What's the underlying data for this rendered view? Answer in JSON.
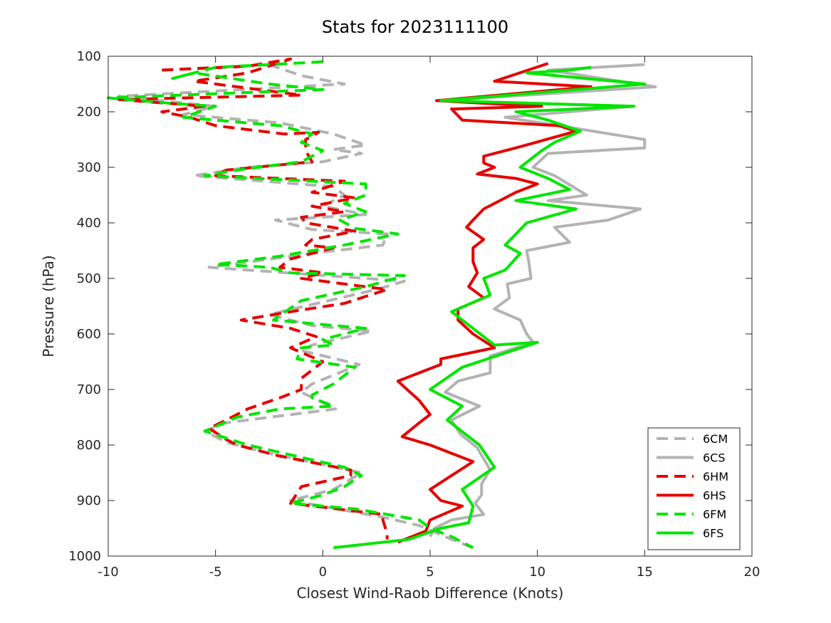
{
  "chart_data": {
    "type": "line",
    "title": "Stats for 2023111100",
    "xlabel": "Closest Wind-Raob Difference (Knots)",
    "ylabel": "Pressure (hPa)",
    "xlim": [
      -10,
      20
    ],
    "ylim": [
      100,
      1000
    ],
    "y_reversed": true,
    "grid": false,
    "legend_position": "bottom-right",
    "x_ticks": [
      -10,
      -5,
      0,
      5,
      10,
      15,
      20
    ],
    "y_ticks": [
      100,
      200,
      300,
      400,
      500,
      600,
      700,
      800,
      900,
      1000
    ],
    "series": [
      {
        "name": "6CM",
        "color": "#b3b3b3",
        "dash": true,
        "points": [
          [
            -7.5,
            125
          ],
          [
            -2.5,
            115
          ],
          [
            -1,
            135
          ],
          [
            1,
            150
          ],
          [
            -9.5,
            172
          ],
          [
            -5,
            190
          ],
          [
            -6.5,
            205
          ],
          [
            -2,
            220
          ],
          [
            0.5,
            240
          ],
          [
            2,
            260
          ],
          [
            0.5,
            268
          ],
          [
            1.8,
            275
          ],
          [
            0,
            290
          ],
          [
            -3.5,
            300
          ],
          [
            -6,
            315
          ],
          [
            0.5,
            335
          ],
          [
            1,
            350
          ],
          [
            0,
            370
          ],
          [
            2,
            385
          ],
          [
            -2.2,
            395
          ],
          [
            -0.5,
            412
          ],
          [
            3,
            420
          ],
          [
            2.8,
            440
          ],
          [
            -0.5,
            455
          ],
          [
            -5.3,
            480
          ],
          [
            3.8,
            505
          ],
          [
            2.5,
            520
          ],
          [
            -2.5,
            565
          ],
          [
            -0.5,
            585
          ],
          [
            2.3,
            595
          ],
          [
            -0.5,
            620
          ],
          [
            -1,
            630
          ],
          [
            1.7,
            655
          ],
          [
            -0.5,
            690
          ],
          [
            -1,
            705
          ],
          [
            0.6,
            735
          ],
          [
            -4.5,
            760
          ],
          [
            -5.5,
            775
          ],
          [
            -4.5,
            795
          ],
          [
            -2.5,
            815
          ],
          [
            1.8,
            850
          ],
          [
            0.5,
            880
          ],
          [
            -1.5,
            900
          ],
          [
            2.8,
            930
          ],
          [
            4.5,
            945
          ],
          [
            6,
            970
          ],
          [
            7,
            985
          ]
        ]
      },
      {
        "name": "6CS",
        "color": "#b3b3b3",
        "dash": false,
        "points": [
          [
            15,
            115
          ],
          [
            10.5,
            125
          ],
          [
            15.5,
            155
          ],
          [
            5.5,
            180
          ],
          [
            14.5,
            190
          ],
          [
            8.5,
            210
          ],
          [
            11,
            225
          ],
          [
            15,
            250
          ],
          [
            15,
            265
          ],
          [
            10.5,
            275
          ],
          [
            9.8,
            300
          ],
          [
            10.8,
            315
          ],
          [
            12.3,
            350
          ],
          [
            10.5,
            360
          ],
          [
            14.8,
            375
          ],
          [
            13.3,
            395
          ],
          [
            10.8,
            408
          ],
          [
            11.5,
            435
          ],
          [
            9.5,
            450
          ],
          [
            9.6,
            470
          ],
          [
            9.7,
            500
          ],
          [
            8.6,
            510
          ],
          [
            8.7,
            535
          ],
          [
            8,
            555
          ],
          [
            9.2,
            575
          ],
          [
            9.5,
            600
          ],
          [
            9.8,
            615
          ],
          [
            7.8,
            640
          ],
          [
            7.8,
            670
          ],
          [
            6.3,
            685
          ],
          [
            5.7,
            705
          ],
          [
            7.3,
            730
          ],
          [
            6,
            755
          ],
          [
            6.4,
            780
          ],
          [
            7.2,
            805
          ],
          [
            7.8,
            845
          ],
          [
            7.4,
            870
          ],
          [
            7.4,
            890
          ],
          [
            7.1,
            905
          ],
          [
            7.5,
            925
          ],
          [
            6,
            935
          ],
          [
            5.2,
            950
          ],
          [
            5,
            965
          ]
        ]
      },
      {
        "name": "6HM",
        "color": "#e60000",
        "dash": true,
        "points": [
          [
            -7.5,
            125
          ],
          [
            -3.5,
            118
          ],
          [
            -1.5,
            105
          ],
          [
            -3.5,
            130
          ],
          [
            -6,
            145
          ],
          [
            -1,
            170
          ],
          [
            -9.5,
            178
          ],
          [
            -5.5,
            190
          ],
          [
            -7.5,
            200
          ],
          [
            -6.2,
            210
          ],
          [
            -5,
            225
          ],
          [
            -1.8,
            240
          ],
          [
            -0.2,
            237
          ],
          [
            -0.8,
            250
          ],
          [
            -0.8,
            270
          ],
          [
            -0.5,
            290
          ],
          [
            -4.5,
            305
          ],
          [
            -5,
            315
          ],
          [
            1,
            325
          ],
          [
            -0.5,
            345
          ],
          [
            1.5,
            355
          ],
          [
            -0.5,
            370
          ],
          [
            1,
            380
          ],
          [
            -1,
            390
          ],
          [
            -0.8,
            400
          ],
          [
            1.5,
            415
          ],
          [
            -0.5,
            430
          ],
          [
            -0.8,
            440
          ],
          [
            0.5,
            445
          ],
          [
            -1.5,
            465
          ],
          [
            -2,
            480
          ],
          [
            0,
            490
          ],
          [
            -1,
            500
          ],
          [
            3,
            520
          ],
          [
            1,
            545
          ],
          [
            -1.5,
            560
          ],
          [
            -3.8,
            575
          ],
          [
            -1.5,
            590
          ],
          [
            -0.3,
            605
          ],
          [
            -1.5,
            625
          ],
          [
            0,
            650
          ],
          [
            -1,
            680
          ],
          [
            -1,
            700
          ],
          [
            -2,
            715
          ],
          [
            -3.5,
            735
          ],
          [
            -4.5,
            755
          ],
          [
            -5.3,
            770
          ],
          [
            -4.5,
            790
          ],
          [
            -4,
            800
          ],
          [
            -2,
            820
          ],
          [
            1.3,
            845
          ],
          [
            1.3,
            855
          ],
          [
            -1,
            875
          ],
          [
            -1.5,
            905
          ],
          [
            2.8,
            925
          ],
          [
            2.8,
            935
          ],
          [
            3,
            960
          ],
          [
            3,
            970
          ]
        ]
      },
      {
        "name": "6HS",
        "color": "#e60000",
        "dash": false,
        "points": [
          [
            10.5,
            113
          ],
          [
            8,
            145
          ],
          [
            12.5,
            155
          ],
          [
            5.3,
            180
          ],
          [
            10.2,
            190
          ],
          [
            6,
            195
          ],
          [
            6.5,
            215
          ],
          [
            11,
            225
          ],
          [
            11.8,
            235
          ],
          [
            9,
            265
          ],
          [
            7.5,
            280
          ],
          [
            7.5,
            292
          ],
          [
            8,
            300
          ],
          [
            7.2,
            312
          ],
          [
            9,
            320
          ],
          [
            10,
            330
          ],
          [
            9,
            345
          ],
          [
            7.5,
            375
          ],
          [
            7,
            395
          ],
          [
            6.7,
            408
          ],
          [
            7.5,
            430
          ],
          [
            7,
            445
          ],
          [
            7,
            470
          ],
          [
            7.2,
            490
          ],
          [
            6.8,
            515
          ],
          [
            7.5,
            535
          ],
          [
            6.3,
            555
          ],
          [
            6.3,
            575
          ],
          [
            7,
            600
          ],
          [
            8,
            625
          ],
          [
            5.5,
            645
          ],
          [
            5.5,
            655
          ],
          [
            3.5,
            685
          ],
          [
            4.5,
            720
          ],
          [
            5,
            745
          ],
          [
            4.5,
            760
          ],
          [
            3.7,
            785
          ],
          [
            5,
            800
          ],
          [
            7,
            830
          ],
          [
            6,
            855
          ],
          [
            5,
            880
          ],
          [
            5.5,
            900
          ],
          [
            6.5,
            910
          ],
          [
            5,
            935
          ],
          [
            4.8,
            955
          ],
          [
            3.5,
            975
          ]
        ]
      },
      {
        "name": "6FM",
        "color": "#00e600",
        "dash": true,
        "points": [
          [
            0,
            110
          ],
          [
            -5,
            120
          ],
          [
            -7,
            140
          ],
          [
            -6,
            130
          ],
          [
            -2.5,
            150
          ],
          [
            0,
            160
          ],
          [
            -10,
            175
          ],
          [
            -7,
            185
          ],
          [
            -5,
            190
          ],
          [
            -6.5,
            210
          ],
          [
            -2,
            225
          ],
          [
            -0.5,
            240
          ],
          [
            -1,
            255
          ],
          [
            0,
            270
          ],
          [
            -1,
            290
          ],
          [
            -4,
            305
          ],
          [
            -5.5,
            315
          ],
          [
            2,
            330
          ],
          [
            2,
            350
          ],
          [
            1,
            365
          ],
          [
            2,
            380
          ],
          [
            0.8,
            395
          ],
          [
            1.5,
            410
          ],
          [
            3.5,
            420
          ],
          [
            1,
            440
          ],
          [
            -2,
            460
          ],
          [
            -5,
            475
          ],
          [
            -2.5,
            480
          ],
          [
            -1.5,
            490
          ],
          [
            3.8,
            495
          ],
          [
            2,
            515
          ],
          [
            -1,
            540
          ],
          [
            -2.3,
            575
          ],
          [
            2,
            590
          ],
          [
            0,
            610
          ],
          [
            0.5,
            620
          ],
          [
            -1,
            625
          ],
          [
            -1.2,
            645
          ],
          [
            1.5,
            660
          ],
          [
            0.5,
            690
          ],
          [
            -0.5,
            710
          ],
          [
            -0.5,
            715
          ],
          [
            0.5,
            730
          ],
          [
            -2,
            735
          ],
          [
            -4,
            750
          ],
          [
            -5.5,
            775
          ],
          [
            -3.5,
            800
          ],
          [
            1,
            840
          ],
          [
            1.8,
            855
          ],
          [
            1,
            875
          ],
          [
            0,
            890
          ],
          [
            -1.5,
            905
          ],
          [
            1.5,
            915
          ],
          [
            4.5,
            935
          ],
          [
            5,
            950
          ],
          [
            6,
            965
          ],
          [
            7,
            985
          ]
        ]
      },
      {
        "name": "6FS",
        "color": "#00e600",
        "dash": false,
        "points": [
          [
            12.5,
            120
          ],
          [
            11.5,
            125
          ],
          [
            9.5,
            130
          ],
          [
            15,
            150
          ],
          [
            5.5,
            180
          ],
          [
            14.5,
            190
          ],
          [
            9,
            200
          ],
          [
            10.5,
            215
          ],
          [
            12,
            235
          ],
          [
            10.8,
            255
          ],
          [
            10.2,
            270
          ],
          [
            9.2,
            300
          ],
          [
            10.5,
            320
          ],
          [
            11.5,
            340
          ],
          [
            9,
            360
          ],
          [
            11.8,
            375
          ],
          [
            9.5,
            400
          ],
          [
            8.5,
            440
          ],
          [
            9.2,
            455
          ],
          [
            8.5,
            485
          ],
          [
            7.5,
            500
          ],
          [
            7.8,
            530
          ],
          [
            6,
            560
          ],
          [
            8,
            620
          ],
          [
            10,
            615
          ],
          [
            6.5,
            660
          ],
          [
            5,
            700
          ],
          [
            6.5,
            730
          ],
          [
            5.8,
            755
          ],
          [
            7.3,
            800
          ],
          [
            8,
            840
          ],
          [
            6.5,
            880
          ],
          [
            7,
            910
          ],
          [
            6.8,
            940
          ],
          [
            5.5,
            950
          ],
          [
            4,
            970
          ],
          [
            0.5,
            985
          ]
        ]
      }
    ]
  }
}
